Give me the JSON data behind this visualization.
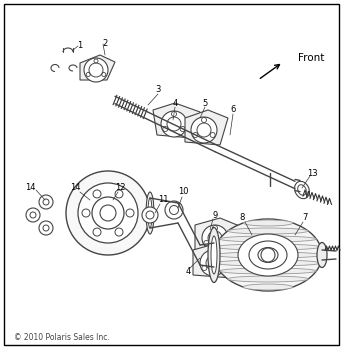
{
  "background_color": "#ffffff",
  "border_color": "#000000",
  "copyright_text": "© 2010 Polaris Sales Inc.",
  "front_label": "Front",
  "fig_width": 3.43,
  "fig_height": 3.49,
  "dpi": 100,
  "line_color": "#444444",
  "gray": "#999999",
  "dark_gray": "#333333",
  "light_gray": "#bbbbbb"
}
